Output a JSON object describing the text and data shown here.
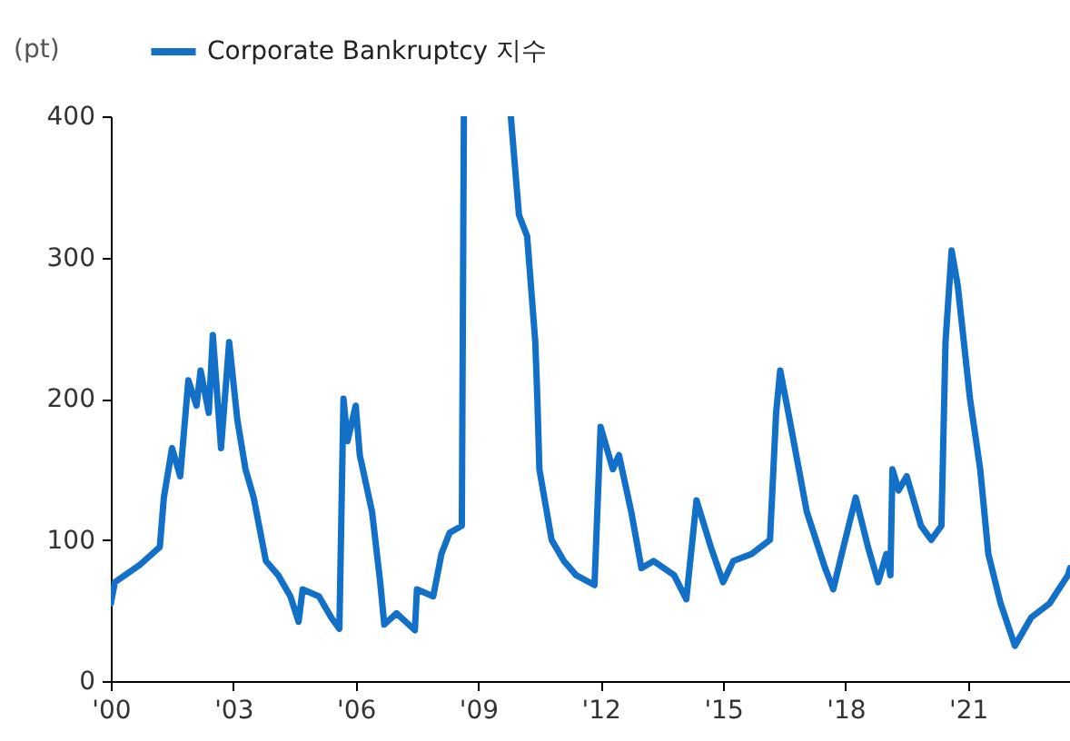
{
  "chart_data": {
    "type": "line",
    "ylabel": "(pt)",
    "legend": "top",
    "grid": false,
    "xlim": [
      2000,
      2023.5
    ],
    "xticks": [
      {
        "value": 2000,
        "label": "'00"
      },
      {
        "value": 2003,
        "label": "'03"
      },
      {
        "value": 2006,
        "label": "'06"
      },
      {
        "value": 2009,
        "label": "'09"
      },
      {
        "value": 2012,
        "label": "'12"
      },
      {
        "value": 2015,
        "label": "'15"
      },
      {
        "value": 2018,
        "label": "'18"
      },
      {
        "value": 2021,
        "label": "'21"
      }
    ],
    "ylim": [
      0,
      400
    ],
    "yticks": [
      0,
      100,
      200,
      300,
      400
    ],
    "x": [
      2000.0,
      2000.1,
      2000.7,
      2001.2,
      2001.3,
      2001.5,
      2001.7,
      2001.9,
      2002.1,
      2002.2,
      2002.4,
      2002.5,
      2002.7,
      2002.9,
      2003.1,
      2003.3,
      2003.5,
      2003.8,
      2004.1,
      2004.4,
      2004.6,
      2004.7,
      2005.1,
      2005.4,
      2005.6,
      2005.7,
      2005.8,
      2006.0,
      2006.1,
      2006.4,
      2006.6,
      2006.7,
      2007.0,
      2007.45,
      2007.5,
      2007.9,
      2008.1,
      2008.3,
      2008.6,
      2008.65,
      2009.2,
      2009.8,
      2010.0,
      2010.2,
      2010.4,
      2010.45,
      2010.5,
      2010.8,
      2011.1,
      2011.4,
      2011.85,
      2012.0,
      2012.3,
      2012.45,
      2012.75,
      2013.0,
      2013.3,
      2013.8,
      2014.1,
      2014.35,
      2014.7,
      2015.0,
      2015.25,
      2015.7,
      2016.15,
      2016.3,
      2016.4,
      2016.6,
      2017.05,
      2017.5,
      2017.7,
      2017.95,
      2018.25,
      2018.55,
      2018.8,
      2019.0,
      2019.1,
      2019.15,
      2019.3,
      2019.5,
      2019.85,
      2020.1,
      2020.35,
      2020.45,
      2020.6,
      2020.75,
      2021.05,
      2021.3,
      2021.5,
      2021.8,
      2022.15,
      2022.55,
      2023.0,
      2023.45,
      2023.5
    ],
    "series": [
      {
        "name": "Corporate Bankruptcy 지수",
        "color": "#1270c8",
        "line_style": "solid",
        "values": [
          55,
          70,
          82,
          95,
          130,
          165,
          145,
          213,
          195,
          220,
          190,
          245,
          165,
          240,
          185,
          150,
          130,
          85,
          75,
          60,
          42,
          65,
          60,
          45,
          37,
          200,
          170,
          195,
          160,
          120,
          70,
          40,
          48,
          36,
          65,
          60,
          90,
          105,
          110,
          400,
          null,
          400,
          330,
          315,
          240,
          200,
          150,
          100,
          85,
          75,
          68,
          180,
          150,
          160,
          120,
          80,
          85,
          75,
          58,
          128,
          95,
          70,
          85,
          90,
          100,
          190,
          220,
          190,
          120,
          80,
          65,
          95,
          130,
          95,
          70,
          90,
          75,
          150,
          135,
          145,
          110,
          100,
          110,
          240,
          305,
          280,
          200,
          150,
          90,
          55,
          25,
          45,
          55,
          75,
          80
        ]
      }
    ]
  }
}
